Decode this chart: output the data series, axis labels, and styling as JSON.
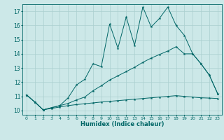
{
  "xlabel": "Humidex (Indice chaleur)",
  "xlim": [
    -0.5,
    23.5
  ],
  "ylim": [
    9.7,
    17.5
  ],
  "yticks": [
    10,
    11,
    12,
    13,
    14,
    15,
    16,
    17
  ],
  "xticks": [
    0,
    1,
    2,
    3,
    4,
    5,
    6,
    7,
    8,
    9,
    10,
    11,
    12,
    13,
    14,
    15,
    16,
    17,
    18,
    19,
    20,
    21,
    22,
    23
  ],
  "bg_color": "#cce8e8",
  "grid_color": "#aacfcf",
  "line_color": "#006666",
  "line1_y": [
    11.1,
    10.6,
    10.05,
    10.2,
    10.35,
    10.9,
    11.8,
    12.2,
    13.3,
    13.1,
    16.1,
    14.4,
    16.6,
    14.6,
    17.3,
    15.9,
    16.5,
    17.3,
    16.0,
    15.3,
    14.0,
    13.3,
    12.5,
    11.2
  ],
  "line2_y": [
    11.1,
    10.6,
    10.05,
    10.2,
    10.35,
    10.5,
    10.75,
    10.95,
    11.4,
    11.75,
    12.15,
    12.45,
    12.75,
    13.05,
    13.4,
    13.7,
    13.95,
    14.2,
    14.5,
    14.0,
    14.0,
    13.3,
    12.5,
    11.2
  ],
  "line3_y": [
    11.1,
    10.6,
    10.05,
    10.15,
    10.25,
    10.35,
    10.42,
    10.48,
    10.54,
    10.6,
    10.65,
    10.7,
    10.75,
    10.8,
    10.85,
    10.9,
    10.95,
    11.0,
    11.05,
    11.0,
    10.95,
    10.9,
    10.88,
    10.85
  ]
}
